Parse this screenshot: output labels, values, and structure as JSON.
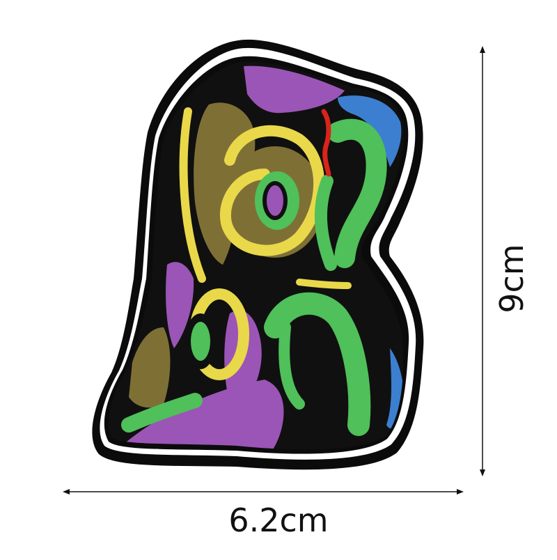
{
  "dimensions": {
    "width_label": "6.2cm",
    "height_label": "9cm"
  },
  "colors": {
    "background": "#ffffff",
    "outline_white": "#ffffff",
    "outline_black": "#0b0b0b",
    "fill_black": "#101010",
    "purple": "#9a55b6",
    "olive": "#7e7035",
    "yellow": "#e9d84a",
    "green": "#4fc05a",
    "blue": "#3c7fd0",
    "red": "#d8241a",
    "dimension_line": "#111111"
  },
  "icons": {
    "width_arrow": "double-headed-horizontal-arrow",
    "height_arrow": "double-headed-vertical-arrow"
  }
}
